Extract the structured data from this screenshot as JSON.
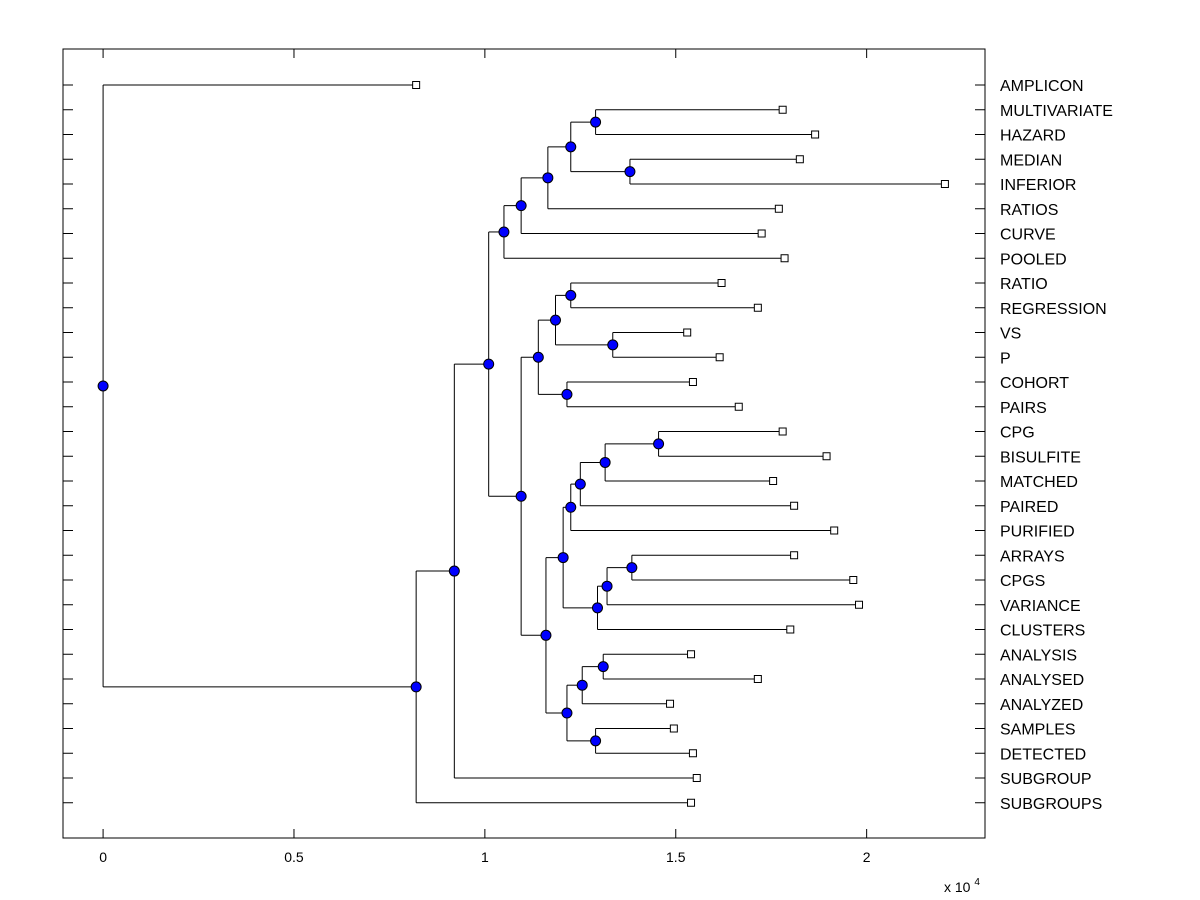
{
  "chart_data": {
    "type": "dendrogram",
    "orientation": "horizontal",
    "xlim": [
      -1050,
      23100
    ],
    "x_ticks": [
      0,
      5000,
      10000,
      15000,
      20000
    ],
    "x_tick_labels": [
      "0",
      "0.5",
      "1",
      "1.5",
      "2"
    ],
    "x_scale_note": {
      "base": "x 10",
      "exponent": "4"
    },
    "node_color": "#0000ff",
    "leaves": [
      {
        "label": "AMPLICON",
        "x": 8200
      },
      {
        "label": "MULTIVARIATE",
        "x": 17800
      },
      {
        "label": "HAZARD",
        "x": 18650
      },
      {
        "label": "MEDIAN",
        "x": 18250
      },
      {
        "label": "INFERIOR",
        "x": 22050
      },
      {
        "label": "RATIOS",
        "x": 17700
      },
      {
        "label": "CURVE",
        "x": 17250
      },
      {
        "label": "POOLED",
        "x": 17850
      },
      {
        "label": "RATIO",
        "x": 16200
      },
      {
        "label": "REGRESSION",
        "x": 17150
      },
      {
        "label": "VS",
        "x": 15300
      },
      {
        "label": "P",
        "x": 16150
      },
      {
        "label": "COHORT",
        "x": 15450
      },
      {
        "label": "PAIRS",
        "x": 16650
      },
      {
        "label": "CPG",
        "x": 17800
      },
      {
        "label": "BISULFITE",
        "x": 18950
      },
      {
        "label": "MATCHED",
        "x": 17550
      },
      {
        "label": "PAIRED",
        "x": 18100
      },
      {
        "label": "PURIFIED",
        "x": 19150
      },
      {
        "label": "ARRAYS",
        "x": 18100
      },
      {
        "label": "CPGS",
        "x": 19650
      },
      {
        "label": "VARIANCE",
        "x": 19800
      },
      {
        "label": "CLUSTERS",
        "x": 18000
      },
      {
        "label": "ANALYSIS",
        "x": 15400
      },
      {
        "label": "ANALYSED",
        "x": 17150
      },
      {
        "label": "ANALYZED",
        "x": 14850
      },
      {
        "label": "SAMPLES",
        "x": 14950
      },
      {
        "label": "DETECTED",
        "x": 15450
      },
      {
        "label": "SUBGROUP",
        "x": 15550
      },
      {
        "label": "SUBGROUPS",
        "x": 15400
      }
    ],
    "merges": [
      {
        "id": "n1",
        "x": 12900,
        "children": [
          "MULTIVARIATE",
          "HAZARD"
        ]
      },
      {
        "id": "n2",
        "x": 13800,
        "children": [
          "MEDIAN",
          "INFERIOR"
        ]
      },
      {
        "id": "n3",
        "x": 12250,
        "children": [
          "n1",
          "n2"
        ]
      },
      {
        "id": "n4",
        "x": 11650,
        "children": [
          "n3",
          "RATIOS"
        ]
      },
      {
        "id": "n5",
        "x": 10950,
        "children": [
          "n4",
          "CURVE"
        ]
      },
      {
        "id": "n6",
        "x": 10500,
        "children": [
          "n5",
          "POOLED"
        ]
      },
      {
        "id": "n7",
        "x": 12250,
        "children": [
          "RATIO",
          "REGRESSION"
        ]
      },
      {
        "id": "n8",
        "x": 13350,
        "children": [
          "VS",
          "P"
        ]
      },
      {
        "id": "n9",
        "x": 11850,
        "children": [
          "n7",
          "n8"
        ]
      },
      {
        "id": "n10",
        "x": 12150,
        "children": [
          "COHORT",
          "PAIRS"
        ]
      },
      {
        "id": "n11",
        "x": 11400,
        "children": [
          "n9",
          "n10"
        ]
      },
      {
        "id": "n12",
        "x": 14550,
        "children": [
          "CPG",
          "BISULFITE"
        ]
      },
      {
        "id": "n13",
        "x": 13150,
        "children": [
          "n12",
          "MATCHED"
        ]
      },
      {
        "id": "n14",
        "x": 12500,
        "children": [
          "n13",
          "PAIRED"
        ]
      },
      {
        "id": "n15",
        "x": 12250,
        "children": [
          "n14",
          "PURIFIED"
        ]
      },
      {
        "id": "n16",
        "x": 13850,
        "children": [
          "ARRAYS",
          "CPGS"
        ]
      },
      {
        "id": "n17",
        "x": 13200,
        "children": [
          "n16",
          "VARIANCE"
        ]
      },
      {
        "id": "n18",
        "x": 12950,
        "children": [
          "n17",
          "CLUSTERS"
        ]
      },
      {
        "id": "n19",
        "x": 12050,
        "children": [
          "n15",
          "n18"
        ]
      },
      {
        "id": "n20",
        "x": 13100,
        "children": [
          "ANALYSIS",
          "ANALYSED"
        ]
      },
      {
        "id": "n21",
        "x": 12550,
        "children": [
          "n20",
          "ANALYZED"
        ]
      },
      {
        "id": "n22",
        "x": 12900,
        "children": [
          "SAMPLES",
          "DETECTED"
        ]
      },
      {
        "id": "n23",
        "x": 12150,
        "children": [
          "n21",
          "n22"
        ]
      },
      {
        "id": "n24",
        "x": 11600,
        "children": [
          "n19",
          "n23"
        ]
      },
      {
        "id": "n25",
        "x": 10950,
        "children": [
          "n11",
          "n24"
        ]
      },
      {
        "id": "n26",
        "x": 10100,
        "children": [
          "n6",
          "n25"
        ]
      },
      {
        "id": "n27",
        "x": 9200,
        "children": [
          "n26",
          "SUBGROUP"
        ]
      },
      {
        "id": "n28",
        "x": 8200,
        "children": [
          "n27",
          "SUBGROUPS"
        ]
      },
      {
        "id": "n29",
        "x": 0,
        "children": [
          "AMPLICON",
          "n28"
        ]
      }
    ]
  }
}
